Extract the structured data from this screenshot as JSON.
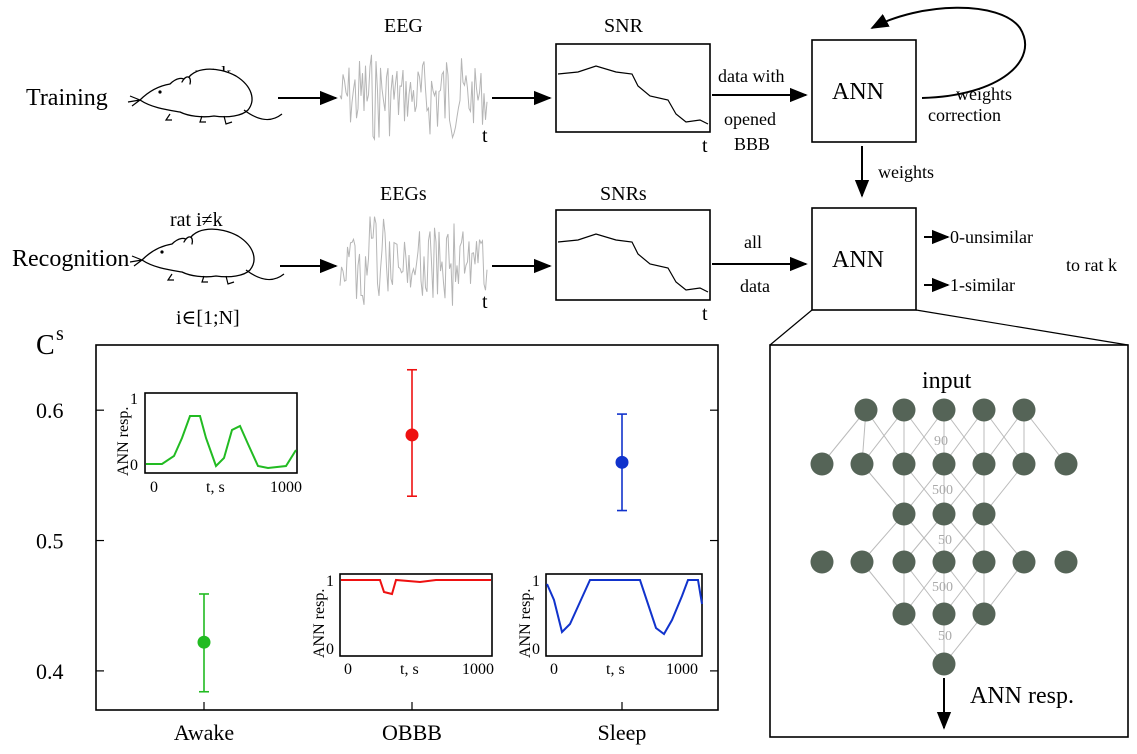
{
  "top": {
    "training_label": "Training",
    "recognition_label": "Recognition",
    "rat_k": "rat k",
    "rat_i": "rat i≠k",
    "rat_range": "i∈[1;N]",
    "eeg": "EEG",
    "eegs": "EEGs",
    "snr": "SNR",
    "snrs": "SNRs",
    "t": "t",
    "data_with": [
      "data with",
      "opened",
      "BBB"
    ],
    "all_data": [
      "all",
      "data"
    ],
    "ann": "ANN",
    "weights_correction": [
      "weights",
      "correction"
    ],
    "weights": "weights",
    "out0": "0-unsimilar",
    "out1": "1-similar",
    "to_rat": "to rat k"
  },
  "network": {
    "input_label": "input",
    "output_label": "ANN resp.",
    "layer_sizes_shown": [
      5,
      7,
      3,
      7,
      3,
      1
    ],
    "edge_labels": [
      "90",
      "500",
      "50",
      "500",
      "50"
    ]
  },
  "inset_labels": {
    "ylabel": "ANN resp.",
    "xlabel": "t, s",
    "x0": "0",
    "x1": "1000",
    "y0": "0",
    "y1": "1"
  },
  "colors": {
    "awake": "#22bb22",
    "obbb": "#ee1111",
    "sleep": "#1133cc",
    "node": "#556457"
  },
  "chart_data": {
    "type": "scatter",
    "title": "",
    "ylabel": "C",
    "ylabel_superscript": "s",
    "xlabel": "",
    "categories": [
      "Awake",
      "OBBB",
      "Sleep"
    ],
    "values": [
      0.422,
      0.581,
      0.56
    ],
    "error_low": [
      0.384,
      0.534,
      0.523
    ],
    "error_high": [
      0.459,
      0.631,
      0.597
    ],
    "ylim": [
      0.37,
      0.65
    ],
    "yticks": [
      "0.4",
      "0.5",
      "0.6"
    ],
    "grid": false
  }
}
